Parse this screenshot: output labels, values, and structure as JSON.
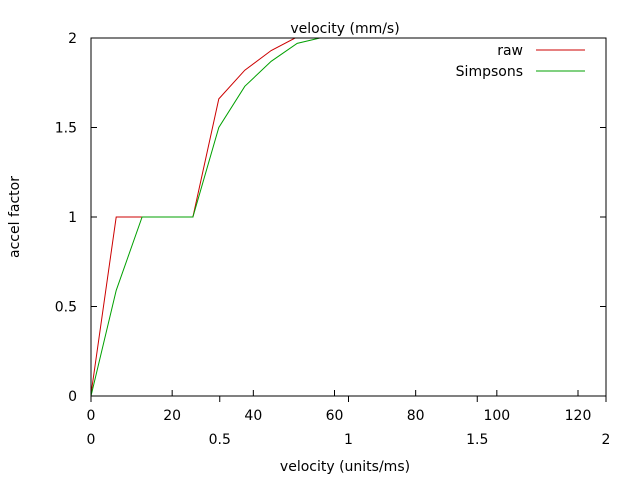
{
  "chart_data": {
    "type": "line",
    "title": "velocity (mm/s)",
    "xlabel": "velocity (units/ms)",
    "ylabel": "accel factor",
    "x_axis_primary": {
      "label": "velocity (units/ms)",
      "range": [
        0,
        126.9
      ],
      "ticks": [
        0,
        20,
        40,
        60,
        80,
        100,
        120
      ]
    },
    "x_axis_secondary": {
      "label": "velocity (mm/s)",
      "range": [
        0,
        2
      ],
      "ticks": [
        0,
        0.5,
        1,
        1.5,
        2
      ],
      "tick_labels": [
        "0",
        "0.5",
        "1",
        "1.5",
        "2"
      ]
    },
    "ylim": [
      0,
      2
    ],
    "yticks": [
      0,
      0.5,
      1,
      1.5,
      2
    ],
    "ytick_labels": [
      "0",
      "0.5",
      "1",
      "1.5",
      "2"
    ],
    "grid": false,
    "legend_position": "top-right",
    "series": [
      {
        "name": "raw",
        "color": "#cc0000",
        "x": [
          0,
          6.2,
          25.1,
          31.5,
          37.9,
          44.4,
          50.3,
          126.9
        ],
        "y": [
          0.01,
          1.0,
          1.0,
          1.66,
          1.82,
          1.93,
          2.0,
          2.0
        ]
      },
      {
        "name": "Simpsons",
        "color": "#00a000",
        "x": [
          0,
          6.2,
          12.6,
          25.1,
          31.5,
          37.9,
          44.4,
          50.8,
          56.4,
          126.9
        ],
        "y": [
          0.0,
          0.59,
          1.0,
          1.0,
          1.5,
          1.73,
          1.87,
          1.97,
          2.0,
          2.0
        ]
      }
    ]
  }
}
